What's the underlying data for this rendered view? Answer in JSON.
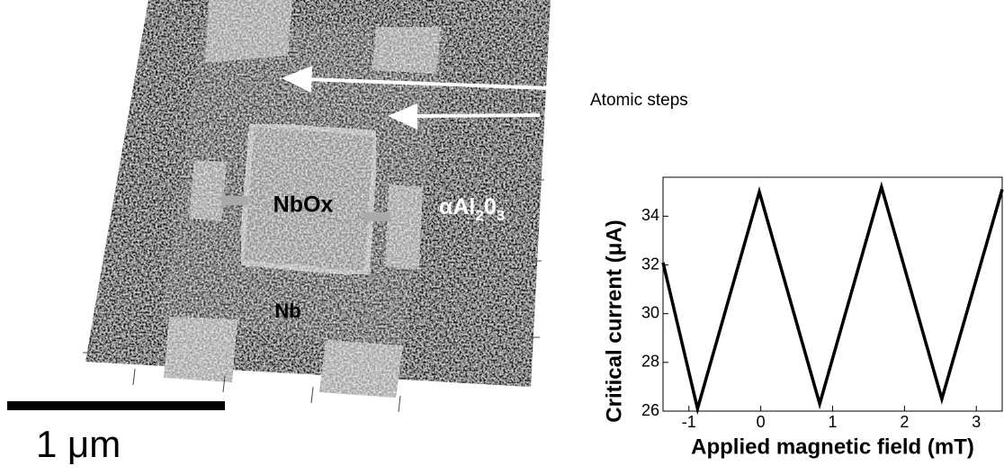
{
  "chart_data": {
    "type": "line",
    "xlabel": "Applied magnetic field (mT)",
    "ylabel": "Critical current (μA)",
    "xlim": [
      -1.36,
      3.36
    ],
    "ylim": [
      26,
      35.6
    ],
    "xticks": [
      -1,
      0,
      1,
      2,
      3
    ],
    "yticks": [
      26,
      28,
      30,
      32,
      34
    ],
    "series": [
      {
        "color": "#000000",
        "x": [
          -1.36,
          -0.88,
          -0.02,
          0.82,
          1.68,
          2.52,
          3.36
        ],
        "values": [
          32.1,
          26.1,
          35.0,
          26.3,
          35.2,
          26.5,
          35.1
        ]
      }
    ]
  },
  "micrograph": {
    "arrow_label": "Atomic steps",
    "center_label": "NbOx",
    "lower_label": "Nb",
    "substrate_label": [
      "αAl",
      "2",
      "0",
      "3"
    ],
    "scale_bar": "1 μm"
  }
}
